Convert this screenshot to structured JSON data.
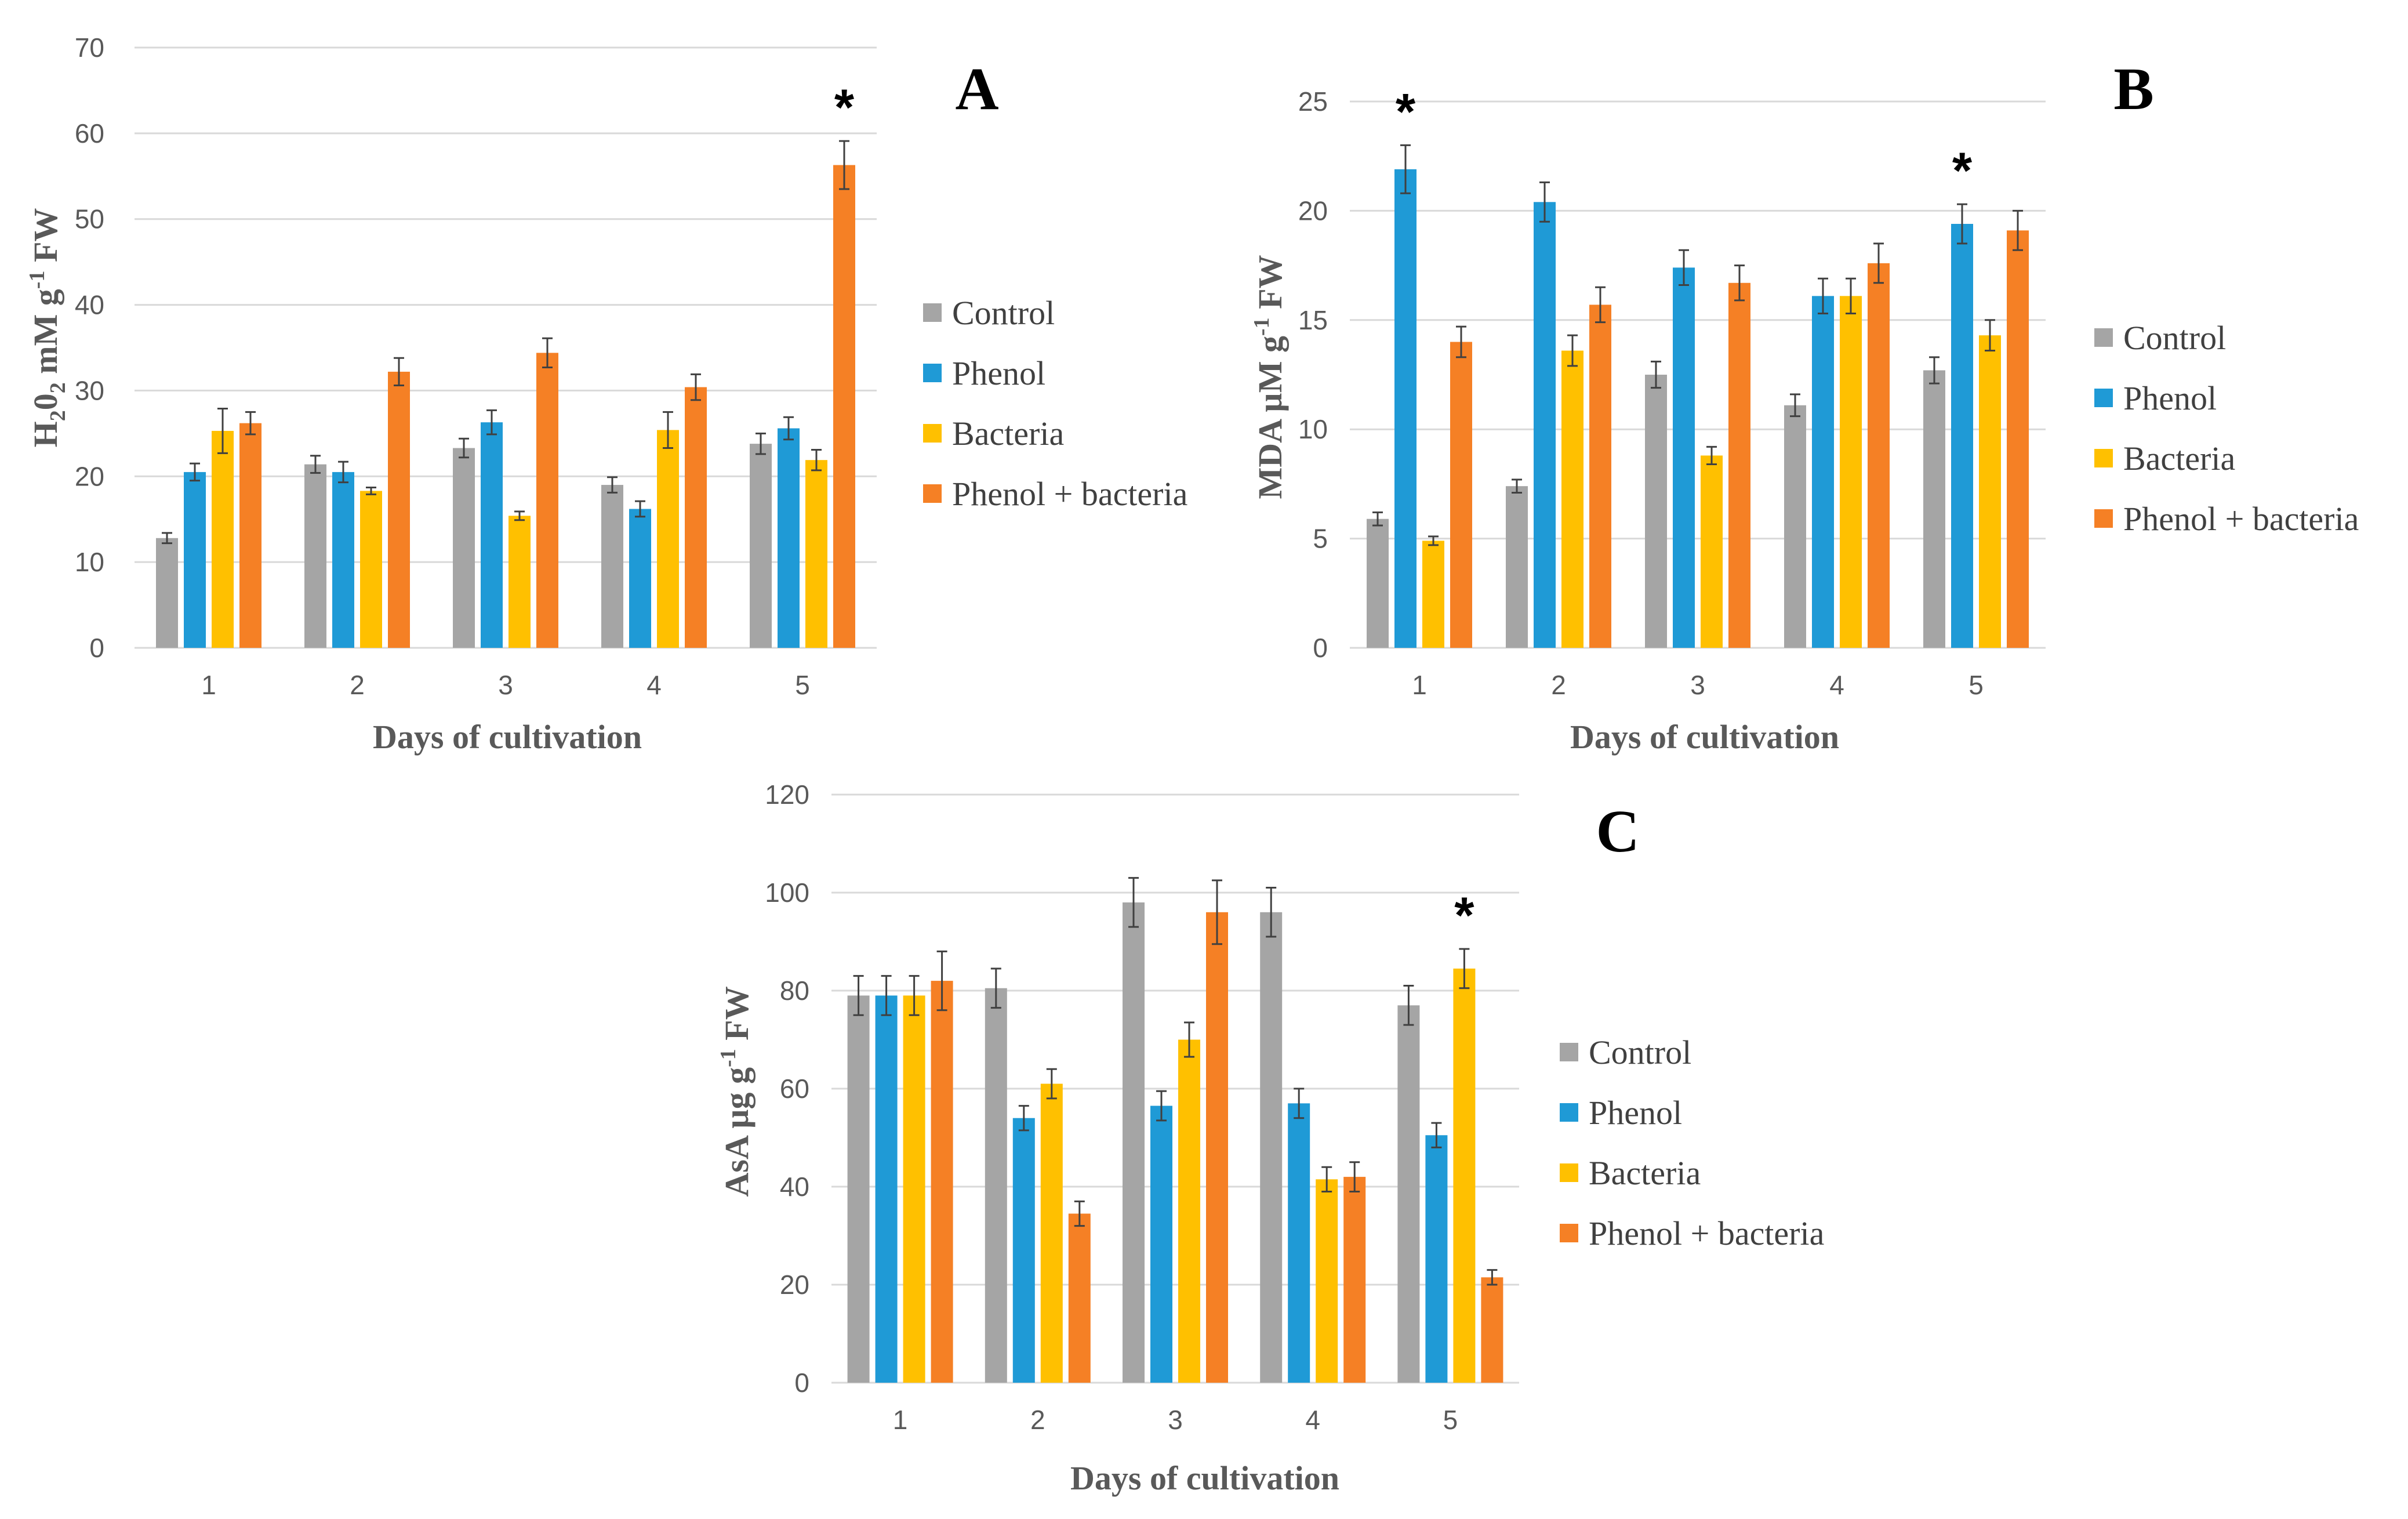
{
  "figure": {
    "colors": {
      "Control": "#a5a5a5",
      "Phenol": "#1f9ad6",
      "Bacteria": "#ffc000",
      "Phenol + bacteria": "#f58025",
      "grid": "#d9d9d9",
      "errorbar": "#404040"
    }
  },
  "chart_data": [
    {
      "id": "A",
      "type": "bar",
      "panel_label": "A",
      "xlabel": "Days of cultivation",
      "ylabel": "H20 2 mM g-1 FW",
      "ylabel_parts": {
        "p1": "H",
        "sub1": "2",
        "p2": "0",
        "sub2": "2",
        "p3": " mM g",
        "sup": "-1",
        "p4": " FW"
      },
      "categories": [
        "1",
        "2",
        "3",
        "4",
        "5"
      ],
      "yticks": [
        0,
        10,
        20,
        30,
        40,
        50,
        60,
        70
      ],
      "ylim": [
        0,
        70
      ],
      "grid": true,
      "legend_position": "right",
      "series": [
        {
          "name": "Control",
          "values": [
            12.8,
            21.4,
            23.3,
            19.0,
            23.8
          ],
          "errors": [
            0.6,
            1.0,
            1.1,
            0.9,
            1.2
          ]
        },
        {
          "name": "Phenol",
          "values": [
            20.5,
            20.5,
            26.3,
            16.2,
            25.6
          ],
          "errors": [
            1.0,
            1.2,
            1.4,
            0.9,
            1.3
          ]
        },
        {
          "name": "Bacteria",
          "values": [
            25.3,
            18.3,
            15.4,
            25.4,
            21.9
          ],
          "errors": [
            2.6,
            0.4,
            0.5,
            2.1,
            1.2
          ]
        },
        {
          "name": "Phenol + bacteria",
          "values": [
            26.2,
            32.2,
            34.4,
            30.4,
            56.3
          ],
          "errors": [
            1.3,
            1.6,
            1.7,
            1.5,
            2.8
          ]
        }
      ],
      "annotations": [
        {
          "text": "*",
          "category": "5",
          "value": 56.3
        }
      ]
    },
    {
      "id": "B",
      "type": "bar",
      "panel_label": "B",
      "xlabel": "Days of cultivation",
      "ylabel": "MDA µM g-1 FW",
      "ylabel_parts": {
        "p1": "MDA µM g",
        "sup": "-1",
        "p2": " FW"
      },
      "categories": [
        "1",
        "2",
        "3",
        "4",
        "5"
      ],
      "yticks": [
        0,
        5,
        10,
        15,
        20,
        25
      ],
      "ylim": [
        0,
        25
      ],
      "grid": true,
      "legend_position": "right",
      "series": [
        {
          "name": "Control",
          "values": [
            5.9,
            7.4,
            12.5,
            11.1,
            12.7
          ],
          "errors": [
            0.3,
            0.3,
            0.6,
            0.5,
            0.6
          ]
        },
        {
          "name": "Phenol",
          "values": [
            21.9,
            20.4,
            17.4,
            16.1,
            19.4
          ],
          "errors": [
            1.1,
            0.9,
            0.8,
            0.8,
            0.9
          ]
        },
        {
          "name": "Bacteria",
          "values": [
            4.9,
            13.6,
            8.8,
            16.1,
            14.3
          ],
          "errors": [
            0.2,
            0.7,
            0.4,
            0.8,
            0.7
          ]
        },
        {
          "name": "Phenol + bacteria",
          "values": [
            14.0,
            15.7,
            16.7,
            17.6,
            19.1
          ],
          "errors": [
            0.7,
            0.8,
            0.8,
            0.9,
            0.9
          ]
        }
      ],
      "annotations": [
        {
          "text": "*",
          "category": "1",
          "value": 21.9
        },
        {
          "text": "*",
          "category": "5",
          "value": 19.4
        }
      ]
    },
    {
      "id": "C",
      "type": "bar",
      "panel_label": "C",
      "xlabel": "Days of cultivation",
      "ylabel": "AsA µg g-1 FW",
      "ylabel_parts": {
        "p1": "AsA µg g",
        "sup": "-1",
        "p2": " FW"
      },
      "categories": [
        "1",
        "2",
        "3",
        "4",
        "5"
      ],
      "yticks": [
        0,
        20,
        40,
        60,
        80,
        100,
        120
      ],
      "ylim": [
        0,
        120
      ],
      "grid": true,
      "legend_position": "right",
      "series": [
        {
          "name": "Control",
          "values": [
            79,
            80.5,
            98,
            96,
            77
          ],
          "errors": [
            4,
            4,
            5,
            5,
            4
          ]
        },
        {
          "name": "Phenol",
          "values": [
            79,
            54,
            56.5,
            57,
            50.5
          ],
          "errors": [
            4,
            2.5,
            3,
            3,
            2.5
          ]
        },
        {
          "name": "Bacteria",
          "values": [
            79,
            61,
            70,
            41.5,
            84.5
          ],
          "errors": [
            4,
            3,
            3.5,
            2.5,
            4
          ]
        },
        {
          "name": "Phenol + bacteria",
          "values": [
            82,
            34.5,
            96,
            42,
            21.5
          ],
          "errors": [
            6,
            2.5,
            6.5,
            3,
            1.5
          ]
        }
      ],
      "annotations": [
        {
          "text": "*",
          "category": "5",
          "value": 84.5
        }
      ]
    }
  ]
}
